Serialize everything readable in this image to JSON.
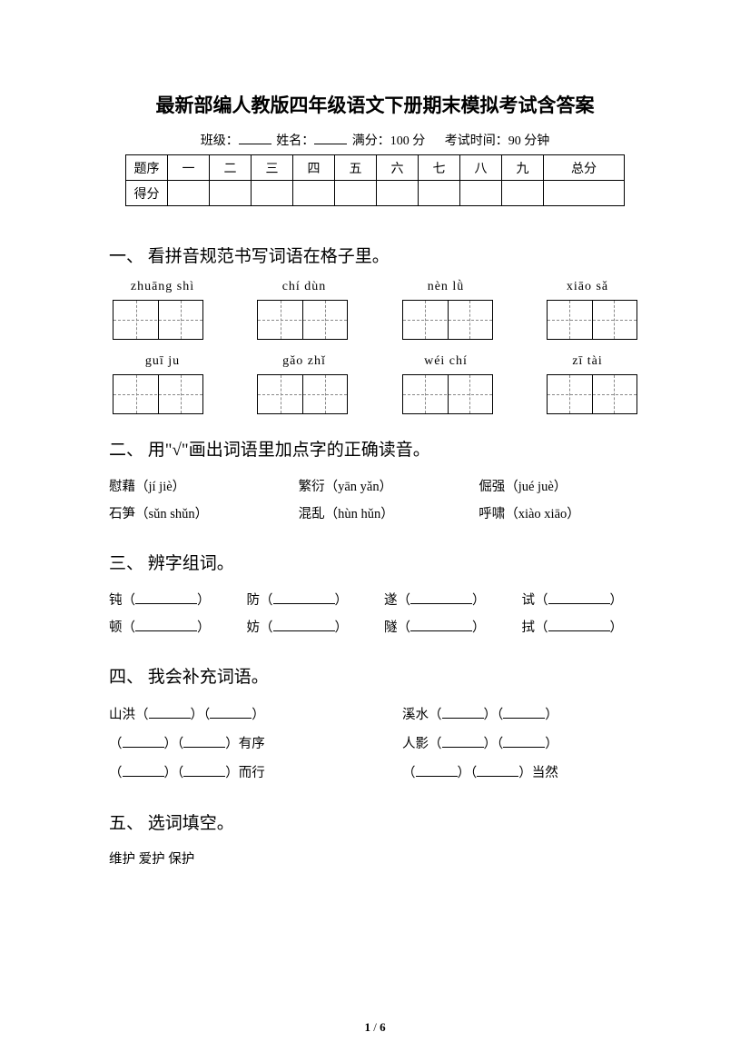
{
  "title": "最新部编人教版四年级语文下册期末模拟考试含答案",
  "meta": {
    "class_label": "班级：",
    "name_label": "姓名：",
    "full_label": "满分：100 分",
    "time_label": "考试时间：90 分钟"
  },
  "score_table": {
    "header": [
      "题序",
      "一",
      "二",
      "三",
      "四",
      "五",
      "六",
      "七",
      "八",
      "九",
      "总分"
    ],
    "row_label": "得分"
  },
  "q1": {
    "head": "一、 看拼音规范书写词语在格子里。",
    "row1": [
      "zhuāng shì",
      "chí dùn",
      "nèn lǜ",
      "xiāo sǎ"
    ],
    "row2": [
      "guī   ju",
      "gǎo zhǐ",
      "wéi   chí",
      "zī   tài"
    ]
  },
  "q2": {
    "head": "二、 用\"√\"画出词语里加点字的正确读音。",
    "items": [
      [
        "慰藉（jí  jiè）",
        "繁衍（yān  yǎn）",
        "倔强（jué  juè）"
      ],
      [
        "石笋（sǔn  shǔn）",
        "混乱（hùn  hǔn）",
        "呼啸（xiào  xiāo）"
      ]
    ]
  },
  "q3": {
    "head": "三、 辨字组词。",
    "rows": [
      [
        "钝（",
        "）",
        "防（",
        "）",
        "遂（",
        "）",
        "试（",
        "）"
      ],
      [
        "顿（",
        "）",
        "妨（",
        "）",
        "隧（",
        "）",
        "拭（",
        "）"
      ]
    ]
  },
  "q4": {
    "head": "四、 我会补充词语。",
    "left": [
      [
        "山洪（",
        "）（",
        "）"
      ],
      [
        "（",
        "）（",
        "）有序"
      ],
      [
        "（",
        "）（",
        "）而行"
      ]
    ],
    "right": [
      [
        "溪水（",
        "）（",
        "）"
      ],
      [
        "人影（",
        "）（",
        "）"
      ],
      [
        "（",
        "）（",
        "）当然"
      ]
    ]
  },
  "q5": {
    "head": "五、 选词填空。",
    "words": "维护    爱护    保护"
  },
  "page": {
    "current": "1",
    "sep": " / ",
    "total": "6"
  }
}
